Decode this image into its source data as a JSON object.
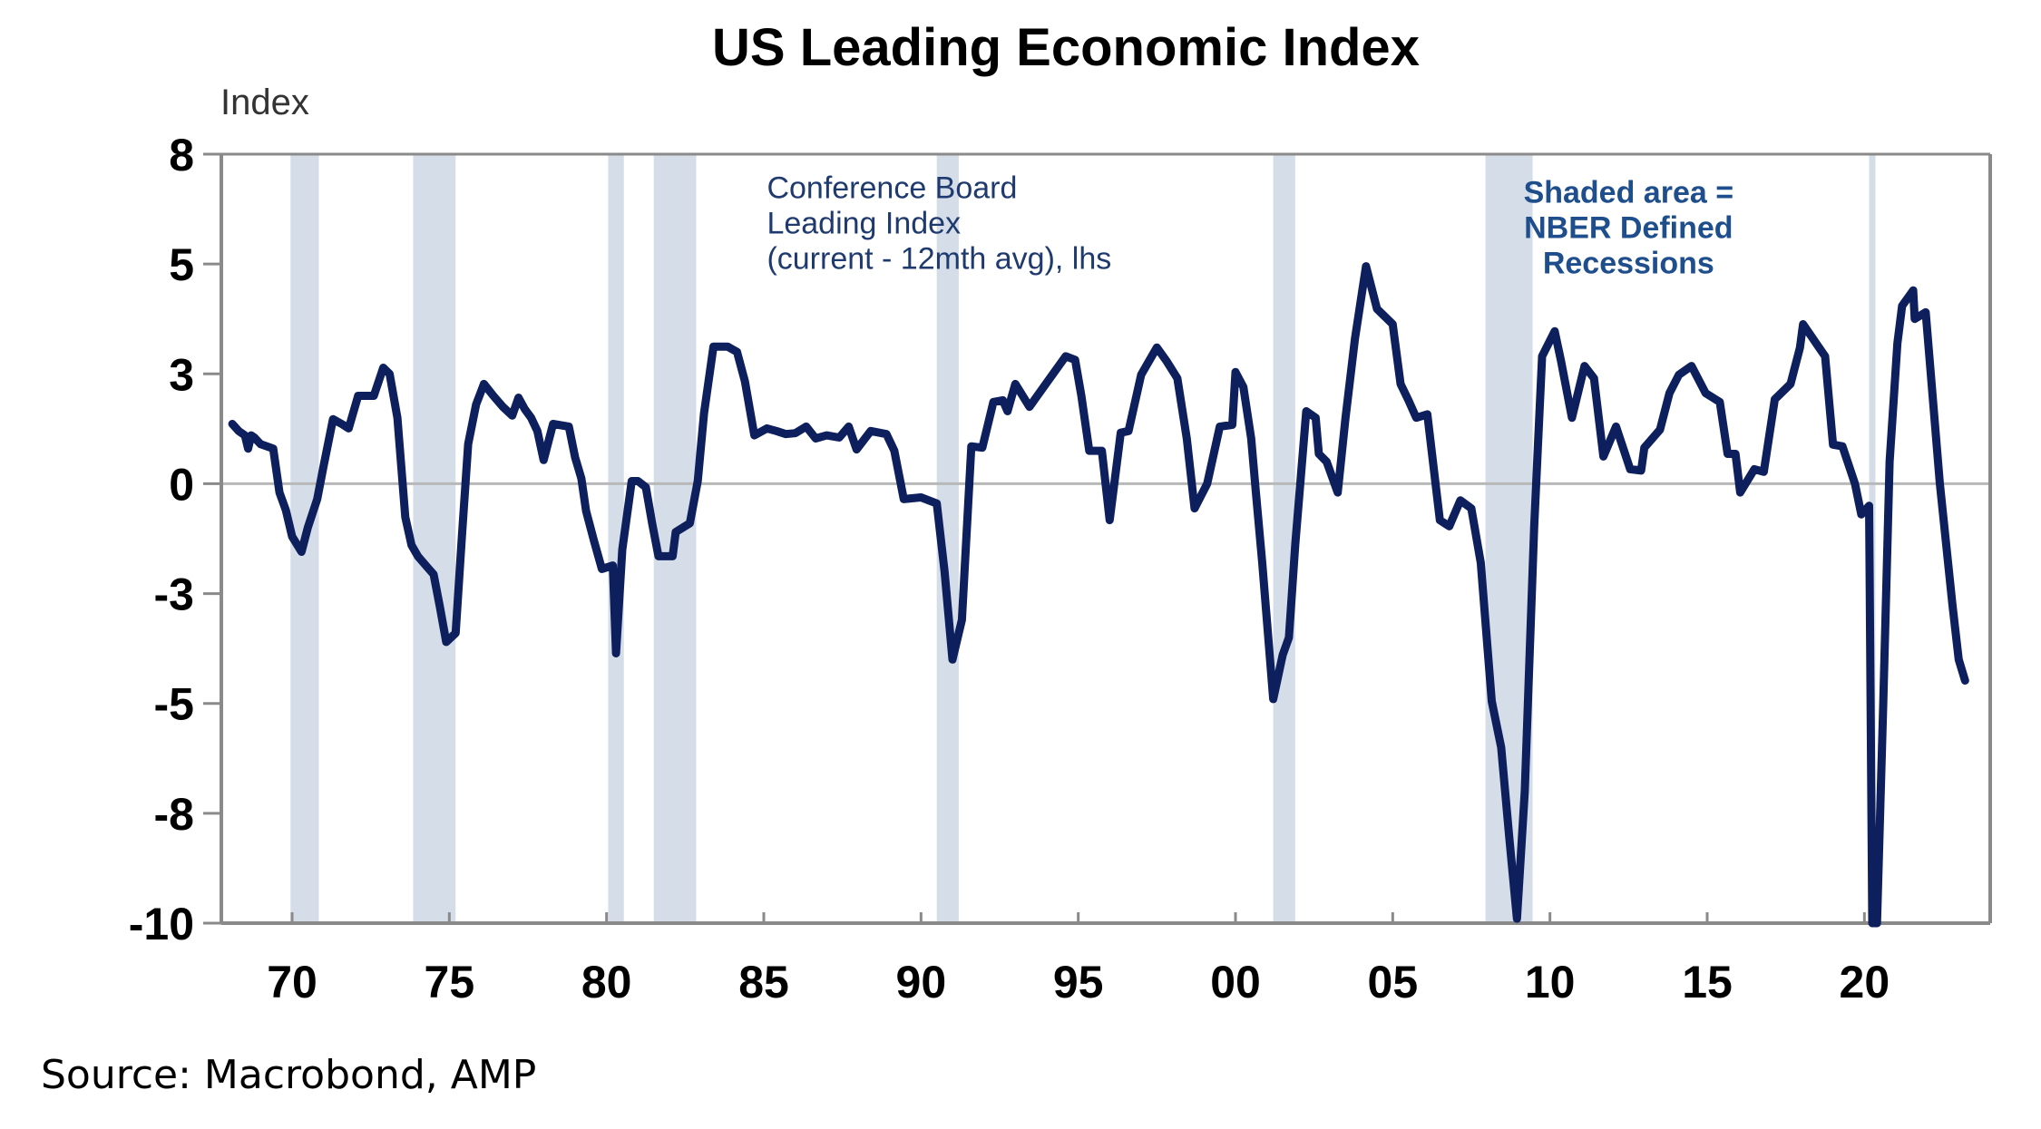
{
  "chart_data": {
    "type": "line",
    "title": "US Leading Economic Index",
    "xlabel": "",
    "ylabel": "Index",
    "source": "Source: Macrobond, AMP",
    "y_tick_labels": [
      "8",
      "5",
      "3",
      "0",
      "-3",
      "-5",
      "-8",
      "-10"
    ],
    "y_tick_values": [
      7.5,
      5,
      2.5,
      0,
      -2.5,
      -5,
      -7.5,
      -10
    ],
    "ylim": [
      -10,
      7.5
    ],
    "x_tick_labels": [
      "70",
      "75",
      "80",
      "85",
      "90",
      "95",
      "00",
      "05",
      "10",
      "15",
      "20"
    ],
    "x_tick_values": [
      1970,
      1975,
      1980,
      1985,
      1990,
      1995,
      2000,
      2005,
      2010,
      2015,
      2020
    ],
    "xlim": [
      1967.75,
      2024.0
    ],
    "grid": false,
    "zero_line": true,
    "annotations": [
      {
        "id": "series-label",
        "lines": [
          "Conference Board",
          "Leading Index",
          "(current - 12mth avg), lhs"
        ],
        "anchor_x": 1985.1,
        "anchor_y": 6.5
      },
      {
        "id": "recession-note",
        "lines": [
          "Shaded area =",
          "NBER Defined",
          "Recessions"
        ],
        "anchor_x": 2012.5,
        "anchor_y": 6.4
      }
    ],
    "recessions": [
      {
        "start": 1969.95,
        "end": 1970.85
      },
      {
        "start": 1973.85,
        "end": 1975.2
      },
      {
        "start": 1980.05,
        "end": 1980.55
      },
      {
        "start": 1981.5,
        "end": 1982.85
      },
      {
        "start": 1990.5,
        "end": 1991.2
      },
      {
        "start": 2001.2,
        "end": 2001.9
      },
      {
        "start": 2007.95,
        "end": 2009.45
      },
      {
        "start": 2020.15,
        "end": 2020.35
      }
    ],
    "series": [
      {
        "name": "Conference Board Leading Index (current - 12mth avg), lhs",
        "color": "#0d1f5c",
        "x": [
          1968.1,
          1968.3,
          1968.5,
          1968.6,
          1968.7,
          1968.8,
          1969.0,
          1969.2,
          1969.4,
          1969.6,
          1969.8,
          1970.0,
          1970.3,
          1970.5,
          1970.8,
          1971.0,
          1971.3,
          1971.6,
          1971.8,
          1972.1,
          1972.6,
          1972.9,
          1973.1,
          1973.35,
          1973.6,
          1973.8,
          1974.0,
          1974.3,
          1974.5,
          1974.7,
          1974.9,
          1975.2,
          1975.4,
          1975.6,
          1975.85,
          1976.1,
          1976.4,
          1976.7,
          1977.0,
          1977.2,
          1977.4,
          1977.6,
          1977.8,
          1978.0,
          1978.3,
          1978.8,
          1979.0,
          1979.2,
          1979.35,
          1979.6,
          1979.85,
          1980.2,
          1980.3,
          1980.5,
          1980.8,
          1981.0,
          1981.25,
          1981.45,
          1981.65,
          1982.1,
          1982.2,
          1982.65,
          1982.9,
          1983.1,
          1983.4,
          1983.85,
          1984.15,
          1984.4,
          1984.7,
          1985.1,
          1985.4,
          1985.7,
          1986.0,
          1986.35,
          1986.65,
          1987.0,
          1987.4,
          1987.7,
          1987.95,
          1988.4,
          1988.9,
          1989.15,
          1989.45,
          1990.0,
          1990.5,
          1990.75,
          1991.0,
          1991.3,
          1991.6,
          1991.95,
          1992.3,
          1992.6,
          1992.75,
          1993.0,
          1993.45,
          1993.9,
          1994.3,
          1994.6,
          1994.9,
          1995.1,
          1995.35,
          1995.75,
          1996.0,
          1996.35,
          1996.6,
          1997.0,
          1997.5,
          1997.8,
          1998.15,
          1998.45,
          1998.7,
          1999.1,
          1999.5,
          1999.9,
          2000.0,
          2000.25,
          2000.5,
          2000.65,
          2000.85,
          2001.2,
          2001.5,
          2001.7,
          2001.9,
          2002.25,
          2002.55,
          2002.65,
          2002.9,
          2003.25,
          2003.5,
          2003.8,
          2004.15,
          2004.5,
          2005.0,
          2005.25,
          2005.5,
          2005.75,
          2006.1,
          2006.5,
          2006.8,
          2007.15,
          2007.5,
          2007.8,
          2008.15,
          2008.45,
          2008.7,
          2008.95,
          2009.2,
          2009.5,
          2009.75,
          2010.15,
          2010.35,
          2010.7,
          2011.1,
          2011.4,
          2011.7,
          2012.1,
          2012.55,
          2012.9,
          2013.0,
          2013.5,
          2013.8,
          2014.1,
          2014.5,
          2014.95,
          2015.4,
          2015.65,
          2015.9,
          2016.05,
          2016.5,
          2016.8,
          2017.15,
          2017.65,
          2017.95,
          2018.05,
          2018.5,
          2018.75,
          2019.0,
          2019.3,
          2019.7,
          2019.9,
          2020.15,
          2020.25,
          2020.4,
          2020.6,
          2020.8,
          2021.05,
          2021.2,
          2021.55,
          2021.6,
          2021.95,
          2022.1,
          2022.4,
          2022.8,
          2023.0,
          2023.2
        ],
        "y": [
          1.36,
          1.2,
          1.1,
          0.8,
          1.1,
          1.05,
          0.9,
          0.85,
          0.8,
          -0.2,
          -0.6,
          -1.2,
          -1.55,
          -1.0,
          -0.35,
          0.4,
          1.47,
          1.35,
          1.26,
          2.0,
          2.0,
          2.64,
          2.5,
          1.5,
          -0.76,
          -1.4,
          -1.65,
          -1.9,
          -2.06,
          -2.8,
          -3.6,
          -3.4,
          -1.2,
          0.9,
          1.8,
          2.27,
          2.0,
          1.75,
          1.55,
          1.96,
          1.7,
          1.5,
          1.2,
          0.54,
          1.36,
          1.3,
          0.6,
          0.12,
          -0.62,
          -1.3,
          -1.94,
          -1.86,
          -3.86,
          -1.5,
          0.06,
          0.06,
          -0.08,
          -0.9,
          -1.65,
          -1.65,
          -1.1,
          -0.9,
          0.06,
          1.6,
          3.12,
          3.12,
          3.0,
          2.33,
          1.1,
          1.26,
          1.2,
          1.13,
          1.15,
          1.3,
          1.03,
          1.1,
          1.05,
          1.3,
          0.78,
          1.2,
          1.13,
          0.75,
          -0.35,
          -0.31,
          -0.45,
          -2.0,
          -4.0,
          -3.1,
          0.85,
          0.82,
          1.86,
          1.9,
          1.65,
          2.27,
          1.75,
          2.2,
          2.6,
          2.9,
          2.82,
          2.0,
          0.75,
          0.75,
          -0.83,
          1.16,
          1.2,
          2.48,
          3.1,
          2.8,
          2.4,
          1.03,
          -0.56,
          0.0,
          1.3,
          1.34,
          2.54,
          2.2,
          1.03,
          -0.2,
          -1.8,
          -4.9,
          -3.9,
          -3.5,
          -1.38,
          1.65,
          1.5,
          0.68,
          0.5,
          -0.2,
          1.5,
          3.3,
          4.95,
          3.98,
          3.63,
          2.27,
          1.9,
          1.5,
          1.58,
          -0.83,
          -0.97,
          -0.38,
          -0.56,
          -1.8,
          -4.95,
          -6.0,
          -8.0,
          -9.9,
          -7.0,
          -0.97,
          2.9,
          3.47,
          2.8,
          1.5,
          2.68,
          2.4,
          0.62,
          1.3,
          0.33,
          0.3,
          0.82,
          1.23,
          2.06,
          2.48,
          2.68,
          2.06,
          1.86,
          0.68,
          0.68,
          -0.2,
          0.33,
          0.27,
          1.92,
          2.27,
          3.1,
          3.63,
          3.16,
          2.9,
          0.89,
          0.85,
          0.0,
          -0.7,
          -0.5,
          -10.0,
          -10.0,
          -5.0,
          0.5,
          3.2,
          4.05,
          4.4,
          3.75,
          3.9,
          2.6,
          0.0,
          -2.76,
          -4.0,
          -4.48
        ]
      }
    ]
  },
  "colors": {
    "line": "#0d1f5c",
    "recession_band": "#d5dde8",
    "axis": "#8a8a8a",
    "zero_line": "#b8b8b8"
  }
}
